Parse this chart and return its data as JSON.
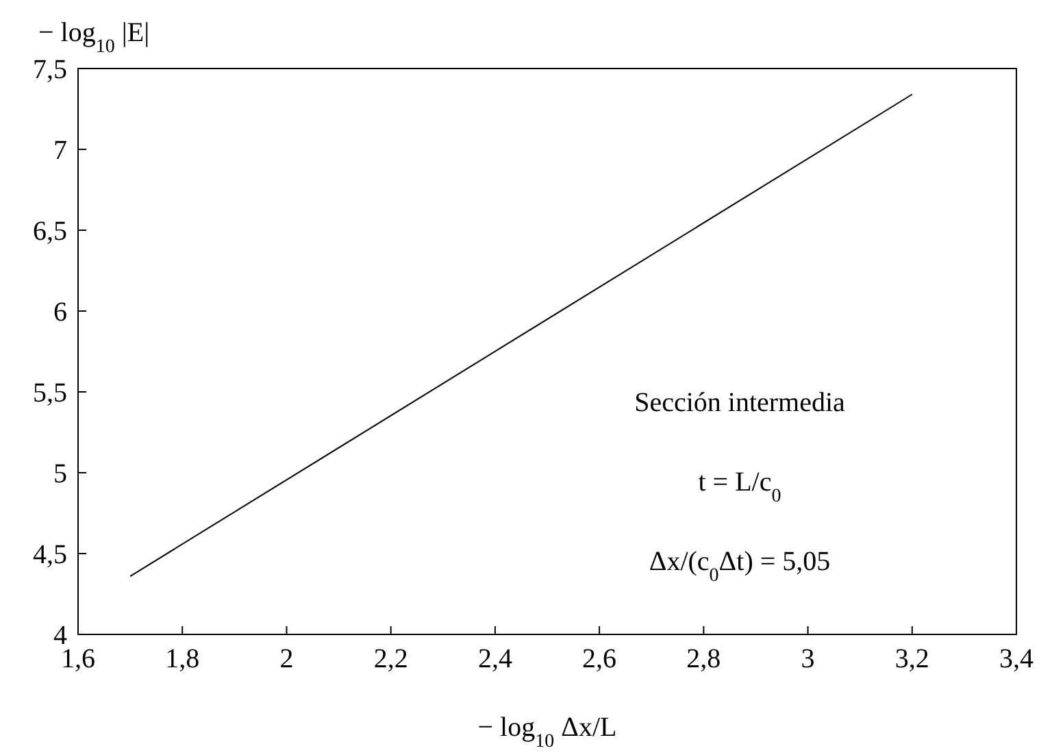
{
  "chart_data": {
    "type": "line",
    "xlabel": "− log$_{10}$ Δx/L",
    "ylabel": "− log$_{10}$ |E|",
    "x": [
      1.7,
      3.2
    ],
    "series": [
      {
        "color": "#000000",
        "values": [
          4.36,
          7.34
        ]
      }
    ],
    "xlim": [
      1.6,
      3.4
    ],
    "ylim": [
      4,
      7.5
    ],
    "xticks": [
      {
        "value": 1.6,
        "label": "1,6"
      },
      {
        "value": 1.8,
        "label": "1,8"
      },
      2,
      {
        "value": 2.2,
        "label": "2,2"
      },
      {
        "value": 2.4,
        "label": "2,4"
      },
      {
        "value": 2.6,
        "label": "2,6"
      },
      {
        "value": 2.8,
        "label": "2,8"
      },
      3,
      {
        "value": 3.2,
        "label": "3,2"
      },
      {
        "value": 3.4,
        "label": "3,4"
      }
    ],
    "yticks": [
      4,
      {
        "value": 4.5,
        "label": "4,5"
      },
      5,
      {
        "value": 5.5,
        "label": "5,5"
      },
      6,
      {
        "value": 6.5,
        "label": "6,5"
      },
      7,
      {
        "value": 7.5,
        "label": "7,5"
      }
    ],
    "annotations": [
      "Sección intermedia",
      "t = L/c$_{0}$",
      "Δx/(c$_{0}$Δt) = 5,05"
    ],
    "grid": false,
    "marker": "none",
    "line_style": "solid"
  }
}
